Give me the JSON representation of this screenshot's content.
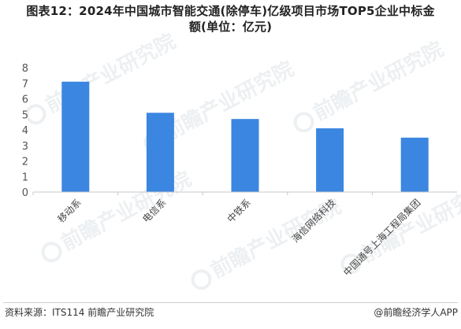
{
  "title": {
    "line1": "图表12：2024年中国城市智能交通(除停车)亿级项目市场TOP5企业中标金",
    "line2": "额(单位：亿元)"
  },
  "chart_data": {
    "type": "bar",
    "categories": [
      "移动系",
      "电信系",
      "中铁系",
      "海信网络科技",
      "中国通号上海工程局集团"
    ],
    "values": [
      7.1,
      5.1,
      4.7,
      4.1,
      3.5
    ],
    "ylim": [
      0,
      8
    ],
    "yticks": [
      0,
      1,
      2,
      3,
      4,
      5,
      6,
      7,
      8
    ],
    "xlabel": "",
    "ylabel": "",
    "grid": false,
    "bar_color": "#3b86e0"
  },
  "watermark": {
    "text": "前瞻产业研究院"
  },
  "footer": {
    "source": "资料来源：ITS114 前瞻产业研究院",
    "credit": "@前瞻经济学人APP"
  }
}
